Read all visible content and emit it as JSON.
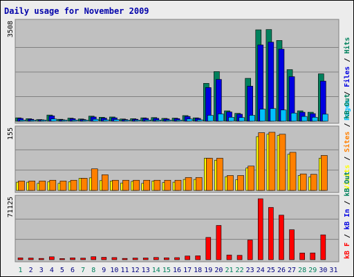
{
  "title": "Daily usage for November 2009",
  "colors": {
    "background": "#ececec",
    "border": "#000000",
    "plot_bg": "#c0c0c0",
    "title": "#0000aa",
    "hits": "#00805c",
    "files": "#0000e0",
    "pages": "#00c0ff",
    "visits": "#ffff00",
    "sites": "#ff8000",
    "kbout": "#00805c",
    "kbin": "#0000e0",
    "kbf": "#ff0000",
    "weekend": "#00805c",
    "weekday": "#000080"
  },
  "chart_data": [
    {
      "type": "bar",
      "panel": "top",
      "ymax_label": "3508",
      "ylim": [
        0,
        3508
      ],
      "side_label": [
        {
          "text": "Pages",
          "color": "#00c0ff"
        },
        {
          "text": " / ",
          "color": "#000000"
        },
        {
          "text": "Files",
          "color": "#0000e0"
        },
        {
          "text": " / ",
          "color": "#000000"
        },
        {
          "text": "Hits",
          "color": "#00805c"
        }
      ],
      "categories": [
        "1",
        "2",
        "3",
        "4",
        "5",
        "6",
        "7",
        "8",
        "9",
        "10",
        "11",
        "12",
        "13",
        "14",
        "15",
        "16",
        "17",
        "18",
        "19",
        "20",
        "21",
        "22",
        "23",
        "24",
        "25",
        "26",
        "27",
        "28",
        "29",
        "30",
        "31"
      ],
      "series": [
        {
          "name": "Hits",
          "color": "#00805c",
          "values": [
            120,
            90,
            60,
            220,
            70,
            110,
            80,
            180,
            140,
            150,
            80,
            90,
            120,
            130,
            100,
            110,
            200,
            120,
            1350,
            1770,
            370,
            280,
            1530,
            3260,
            3270,
            2880,
            1840,
            370,
            320,
            1690,
            0
          ]
        },
        {
          "name": "Files",
          "color": "#0000e0",
          "values": [
            100,
            70,
            50,
            190,
            50,
            90,
            60,
            150,
            110,
            120,
            60,
            70,
            100,
            100,
            80,
            90,
            170,
            100,
            1200,
            1490,
            330,
            250,
            1250,
            2720,
            2820,
            2570,
            1590,
            320,
            270,
            1430,
            0
          ]
        },
        {
          "name": "Pages",
          "color": "#00c0ff",
          "values": [
            40,
            30,
            20,
            80,
            20,
            40,
            30,
            70,
            50,
            60,
            30,
            30,
            40,
            40,
            30,
            40,
            80,
            50,
            210,
            260,
            140,
            130,
            210,
            430,
            450,
            400,
            290,
            170,
            140,
            250,
            0
          ]
        }
      ]
    },
    {
      "type": "bar",
      "panel": "middle",
      "ymax_label": "155",
      "ylim": [
        0,
        155
      ],
      "side_label": [
        {
          "text": "Visits",
          "color": "#ffff00"
        },
        {
          "text": " / ",
          "color": "#000000"
        },
        {
          "text": "Sites",
          "color": "#ff8000"
        },
        {
          "text": " / ",
          "color": "#000000"
        },
        {
          "text": "kB Out",
          "color": "#00805c"
        }
      ],
      "categories": [
        "1",
        "2",
        "3",
        "4",
        "5",
        "6",
        "7",
        "8",
        "9",
        "10",
        "11",
        "12",
        "13",
        "14",
        "15",
        "16",
        "17",
        "18",
        "19",
        "20",
        "21",
        "22",
        "23",
        "24",
        "25",
        "26",
        "27",
        "28",
        "29",
        "30",
        "31"
      ],
      "series": [
        {
          "name": "Visits",
          "color": "#ffff00",
          "values": [
            21,
            21,
            18,
            22,
            18,
            22,
            31,
            32,
            25,
            24,
            19,
            23,
            18,
            24,
            20,
            21,
            28,
            28,
            82,
            77,
            35,
            27,
            57,
            137,
            143,
            140,
            92,
            38,
            34,
            82,
            0
          ]
        },
        {
          "name": "Sites",
          "color": "#ff8000",
          "values": [
            24,
            24,
            24,
            26,
            24,
            26,
            31,
            55,
            40,
            26,
            26,
            26,
            26,
            26,
            26,
            26,
            33,
            33,
            82,
            82,
            38,
            38,
            62,
            147,
            148,
            143,
            97,
            42,
            41,
            89,
            0
          ]
        }
      ]
    },
    {
      "type": "bar",
      "panel": "bottom",
      "ymax_label": "71125",
      "ylim": [
        0,
        71125
      ],
      "side_label": [
        {
          "text": "kB F",
          "color": "#ff0000"
        },
        {
          "text": " / ",
          "color": "#000000"
        },
        {
          "text": "kB In",
          "color": "#0000e0"
        },
        {
          "text": " / ",
          "color": "#000000"
        },
        {
          "text": "kB Out",
          "color": "#00805c"
        }
      ],
      "categories": [
        "1",
        "2",
        "3",
        "4",
        "5",
        "6",
        "7",
        "8",
        "9",
        "10",
        "11",
        "12",
        "13",
        "14",
        "15",
        "16",
        "17",
        "18",
        "19",
        "20",
        "21",
        "22",
        "23",
        "24",
        "25",
        "26",
        "27",
        "28",
        "29",
        "30",
        "31"
      ],
      "weekend_days": [
        1,
        7,
        8,
        14,
        15,
        21,
        22,
        28,
        29
      ],
      "series": [
        {
          "name": "kB F",
          "color": "#ff0000",
          "values": [
            2100,
            1900,
            1500,
            3400,
            1300,
            2100,
            1800,
            3500,
            2800,
            2500,
            1500,
            1900,
            2000,
            2600,
            2200,
            2400,
            4300,
            4500,
            26000,
            40000,
            5500,
            5100,
            23000,
            71125,
            61000,
            52000,
            35000,
            7800,
            7900,
            29000,
            0
          ]
        }
      ]
    }
  ]
}
